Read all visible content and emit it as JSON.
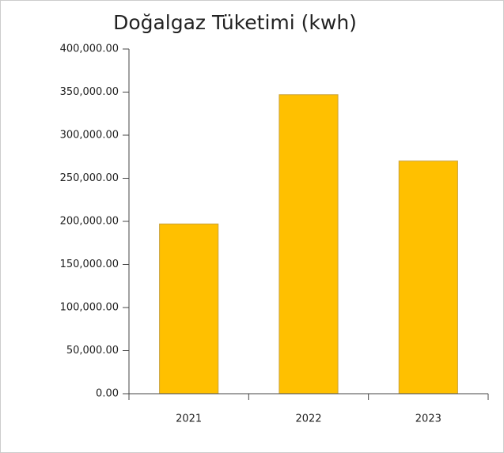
{
  "chart_data": {
    "type": "bar",
    "title": "Doğalgaz Tüketimi (kwh)",
    "categories": [
      "2021",
      "2022",
      "2023"
    ],
    "values": [
      197000,
      347000,
      270000
    ],
    "color": "#ffc000",
    "ylim": [
      0,
      400000
    ],
    "yticks": [
      {
        "value": 0,
        "label": "0.00"
      },
      {
        "value": 50000,
        "label": "50,000.00"
      },
      {
        "value": 100000,
        "label": "100,000.00"
      },
      {
        "value": 150000,
        "label": "150,000.00"
      },
      {
        "value": 200000,
        "label": "200,000.00"
      },
      {
        "value": 250000,
        "label": "250,000.00"
      },
      {
        "value": 300000,
        "label": "300,000.00"
      },
      {
        "value": 350000,
        "label": "350,000.00"
      },
      {
        "value": 400000,
        "label": "400,000.00"
      }
    ],
    "grid": false
  }
}
